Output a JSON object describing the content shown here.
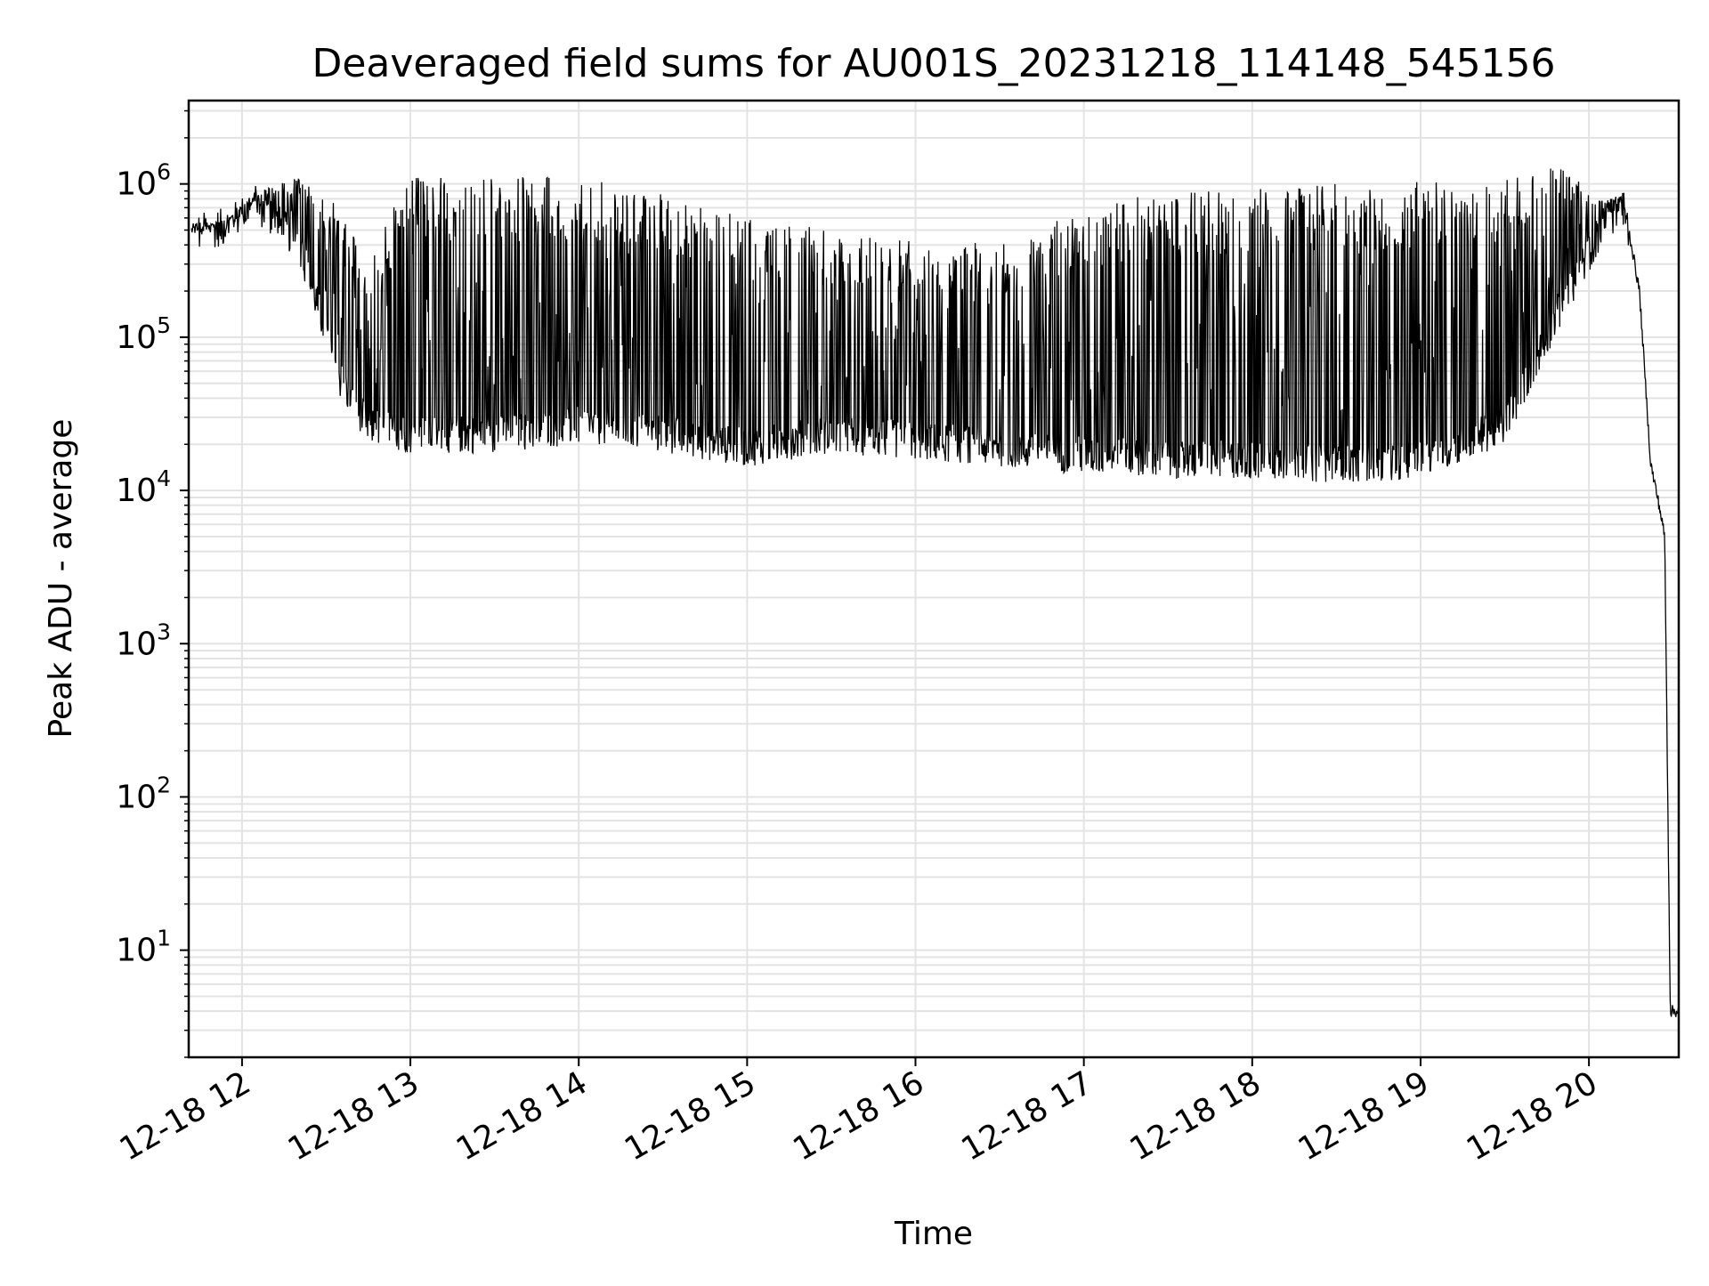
{
  "chart_data": {
    "type": "line",
    "title": "Deaveraged field sums for AU001S_20231218_114148_545156",
    "xlabel": "Time",
    "ylabel": "Peak ADU - average",
    "y_scale": "log",
    "grid": true,
    "x_ticks": [
      "12-18 12",
      "12-18 13",
      "12-18 14",
      "12-18 15",
      "12-18 16",
      "12-18 17",
      "12-18 18",
      "12-18 19",
      "12-18 20"
    ],
    "y_ticks": [
      {
        "base": "10",
        "exp": "1",
        "value": 10
      },
      {
        "base": "10",
        "exp": "2",
        "value": 100
      },
      {
        "base": "10",
        "exp": "3",
        "value": 1000
      },
      {
        "base": "10",
        "exp": "4",
        "value": 10000
      },
      {
        "base": "10",
        "exp": "5",
        "value": 100000
      },
      {
        "base": "10",
        "exp": "6",
        "value": 1000000
      }
    ],
    "xlim": [
      "2023-12-18 11:41",
      "2023-12-18 20:32"
    ],
    "ylim": [
      2,
      3500000
    ],
    "series": [
      {
        "color": "#000000",
        "style": "oscillating",
        "x": [
          "2023-12-18 11:42",
          "2023-12-18 11:55",
          "2023-12-18 12:05",
          "2023-12-18 12:20",
          "2023-12-18 12:35",
          "2023-12-18 12:45",
          "2023-12-18 13:00",
          "2023-12-18 13:30",
          "2023-12-18 14:00",
          "2023-12-18 14:30",
          "2023-12-18 15:00",
          "2023-12-18 15:30",
          "2023-12-18 16:00",
          "2023-12-18 16:30",
          "2023-12-18 17:00",
          "2023-12-18 17:30",
          "2023-12-18 18:00",
          "2023-12-18 18:30",
          "2023-12-18 19:00",
          "2023-12-18 19:30",
          "2023-12-18 19:50",
          "2023-12-18 20:05",
          "2023-12-18 20:12",
          "2023-12-18 20:18",
          "2023-12-18 20:22",
          "2023-12-18 20:25",
          "2023-12-18 20:27",
          "2023-12-18 20:29",
          "2023-12-18 20:32"
        ],
        "upper": [
          500000,
          600000,
          900000,
          1100000,
          700000,
          350000,
          1100000,
          1200000,
          1100000,
          900000,
          600000,
          500000,
          450000,
          400000,
          700000,
          900000,
          1000000,
          1000000,
          1050000,
          1100000,
          1400000,
          800000,
          850000,
          200000,
          15000,
          8000,
          5000,
          4,
          4
        ],
        "lower": [
          450000,
          500000,
          700000,
          400000,
          50000,
          25000,
          22000,
          22000,
          25000,
          22000,
          18000,
          22000,
          20000,
          18000,
          16000,
          15000,
          15000,
          14000,
          15000,
          25000,
          150000,
          500000,
          700000,
          200000,
          15000,
          8000,
          5000,
          4,
          4
        ]
      }
    ]
  }
}
